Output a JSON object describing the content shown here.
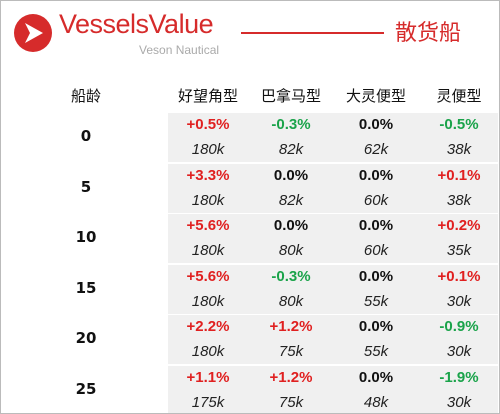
{
  "header": {
    "brand": "VesselsValue",
    "sub": "Veson Nautical",
    "title": "散货船"
  },
  "table": {
    "columns": [
      "船龄",
      "好望角型",
      "巴拿马型",
      "大灵便型",
      "灵便型"
    ],
    "rows": [
      {
        "age": "0",
        "cells": [
          {
            "change": "+0.5%",
            "value": "180k"
          },
          {
            "change": "-0.3%",
            "value": "82k"
          },
          {
            "change": "0.0%",
            "value": "62k"
          },
          {
            "change": "-0.5%",
            "value": "38k"
          }
        ]
      },
      {
        "age": "5",
        "cells": [
          {
            "change": "+3.3%",
            "value": "180k"
          },
          {
            "change": "0.0%",
            "value": "82k"
          },
          {
            "change": "0.0%",
            "value": "60k"
          },
          {
            "change": "+0.1%",
            "value": "38k"
          }
        ]
      },
      {
        "age": "10",
        "cells": [
          {
            "change": "+5.6%",
            "value": "180k"
          },
          {
            "change": "0.0%",
            "value": "80k"
          },
          {
            "change": "0.0%",
            "value": "60k"
          },
          {
            "change": "+0.2%",
            "value": "35k"
          }
        ]
      },
      {
        "age": "15",
        "cells": [
          {
            "change": "+5.6%",
            "value": "180k"
          },
          {
            "change": "-0.3%",
            "value": "80k"
          },
          {
            "change": "0.0%",
            "value": "55k"
          },
          {
            "change": "+0.1%",
            "value": "30k"
          }
        ]
      },
      {
        "age": "20",
        "cells": [
          {
            "change": "+2.2%",
            "value": "180k"
          },
          {
            "change": "+1.2%",
            "value": "75k"
          },
          {
            "change": "0.0%",
            "value": "55k"
          },
          {
            "change": "-0.9%",
            "value": "30k"
          }
        ]
      },
      {
        "age": "25",
        "cells": [
          {
            "change": "+1.1%",
            "value": "175k"
          },
          {
            "change": "+1.2%",
            "value": "75k"
          },
          {
            "change": "0.0%",
            "value": "48k"
          },
          {
            "change": "-1.9%",
            "value": "30k"
          }
        ]
      }
    ]
  }
}
